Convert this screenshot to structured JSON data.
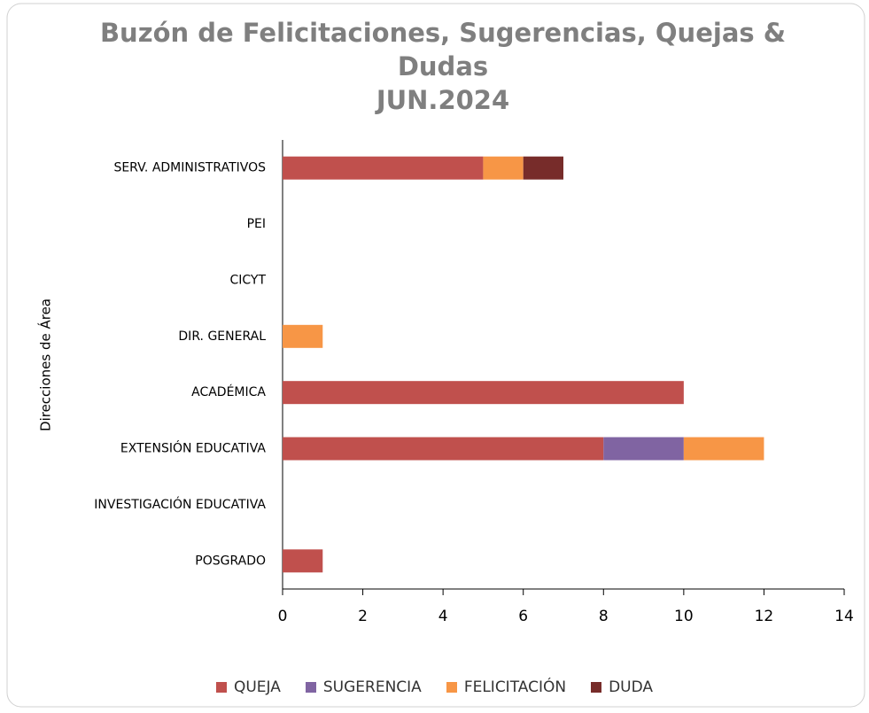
{
  "chart_data": {
    "type": "stacked_barh",
    "title": "Buzón de Felicitaciones, Sugerencias, Quejas & Dudas",
    "subtitle": "JUN.2024",
    "ylabel": "Direcciones de Área",
    "categories": [
      "SERV. ADMINISTRATIVOS",
      "PEI",
      "CICYT",
      "DIR. GENERAL",
      "ACADÉMICA",
      "EXTENSIÓN EDUCATIVA",
      "INVESTIGACIÓN EDUCATIVA",
      "POSGRADO"
    ],
    "series": [
      {
        "name": "QUEJA",
        "color": "#c0504d",
        "values": [
          5,
          0,
          0,
          0,
          10,
          8,
          0,
          1
        ]
      },
      {
        "name": "SUGERENCIA",
        "color": "#8064a2",
        "values": [
          0,
          0,
          0,
          0,
          0,
          2,
          0,
          0
        ]
      },
      {
        "name": "FELICITACIÓN",
        "color": "#f79646",
        "values": [
          1,
          0,
          0,
          1,
          0,
          2,
          0,
          0
        ]
      },
      {
        "name": "DUDA",
        "color": "#772c2a",
        "values": [
          1,
          0,
          0,
          0,
          0,
          0,
          0,
          0
        ]
      }
    ],
    "xlim": [
      0,
      14
    ],
    "xticks": [
      0,
      2,
      4,
      6,
      8,
      10,
      12,
      14
    ],
    "legend": "bottom"
  }
}
